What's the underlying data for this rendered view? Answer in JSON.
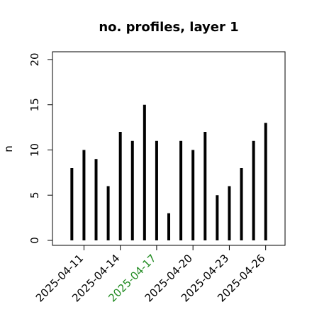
{
  "chart_data": {
    "type": "lollipop-h",
    "title": "no. profiles, layer 1",
    "y_label": "n",
    "x": [
      "2025-04-10",
      "2025-04-11",
      "2025-04-12",
      "2025-04-13",
      "2025-04-14",
      "2025-04-15",
      "2025-04-16",
      "2025-04-17",
      "2025-04-18",
      "2025-04-19",
      "2025-04-20",
      "2025-04-21",
      "2025-04-22",
      "2025-04-23",
      "2025-04-24",
      "2025-04-25",
      "2025-04-26"
    ],
    "values": [
      8,
      10,
      9,
      6,
      12,
      11,
      15,
      11,
      3,
      11,
      10,
      12,
      5,
      6,
      8,
      11,
      13
    ],
    "color": "#000000",
    "ylim": [
      -0.55,
      20.86
    ],
    "yticks": [
      0,
      5,
      10,
      15,
      20
    ],
    "xticks": [
      "2025-04-11",
      "2025-04-14",
      "2025-04-17",
      "2025-04-20",
      "2025-04-23",
      "2025-04-26"
    ],
    "xtick_colors": [
      "#000000",
      "#000000",
      "#228b22",
      "#000000",
      "#000000",
      "#000000"
    ]
  }
}
